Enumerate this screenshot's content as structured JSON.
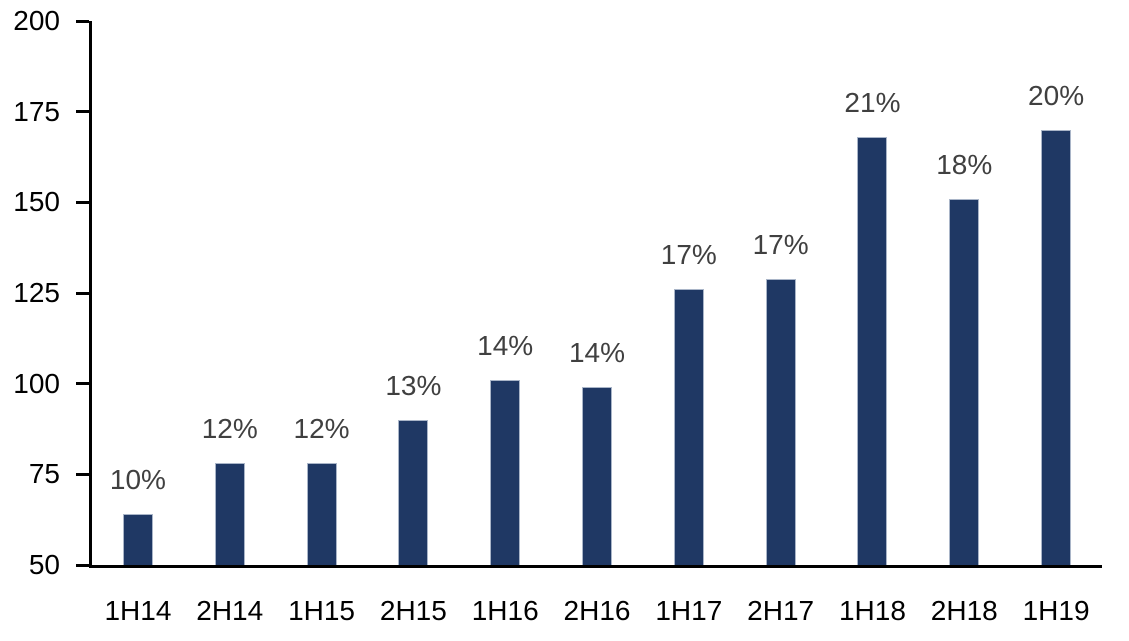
{
  "chart_data": {
    "type": "bar",
    "title": "",
    "xlabel": "",
    "ylabel": "",
    "categories": [
      "1H14",
      "2H14",
      "1H15",
      "2H15",
      "1H16",
      "2H16",
      "1H17",
      "2H17",
      "1H18",
      "2H18",
      "1H19"
    ],
    "values": [
      64,
      78,
      78,
      90,
      101,
      99,
      126,
      129,
      168,
      151,
      170
    ],
    "bar_labels": [
      "10%",
      "12%",
      "12%",
      "13%",
      "14%",
      "14%",
      "17%",
      "17%",
      "21%",
      "18%",
      "20%"
    ],
    "ylim": [
      50,
      200
    ],
    "yticks": [
      50,
      75,
      100,
      125,
      150,
      175,
      200
    ],
    "grid": false,
    "legend": false,
    "colors": {
      "bar_fill": "#1F3864",
      "bar_border": "#A9B5C8",
      "data_label": "#404040",
      "axis": "#000000",
      "background": "#FFFFFF"
    }
  }
}
